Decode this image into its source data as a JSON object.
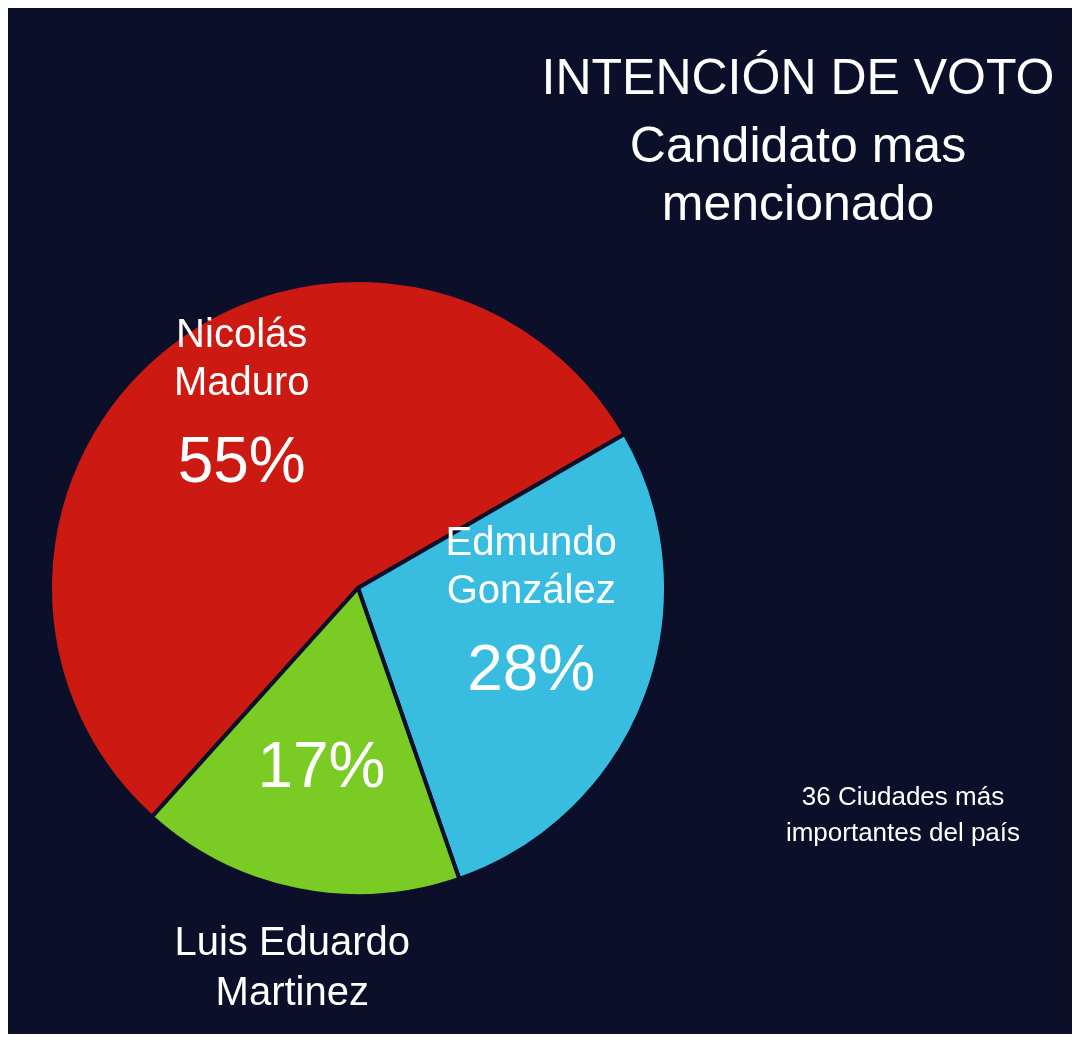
{
  "chart_data": {
    "type": "pie",
    "title": "INTENCIÓN DE VOTO",
    "subtitle": "Candidato mas mencionado",
    "categories": [
      "Nicolás Maduro",
      "Edmundo González",
      "Luis Eduardo Martinez"
    ],
    "values": [
      55,
      28,
      17
    ],
    "colors": [
      "#cc1a12",
      "#38bde0",
      "#7acc24"
    ],
    "value_labels": [
      "55%",
      "28%",
      "17%"
    ],
    "legend": false,
    "annotations": [
      "36 Ciudades más importantes del país"
    ]
  }
}
